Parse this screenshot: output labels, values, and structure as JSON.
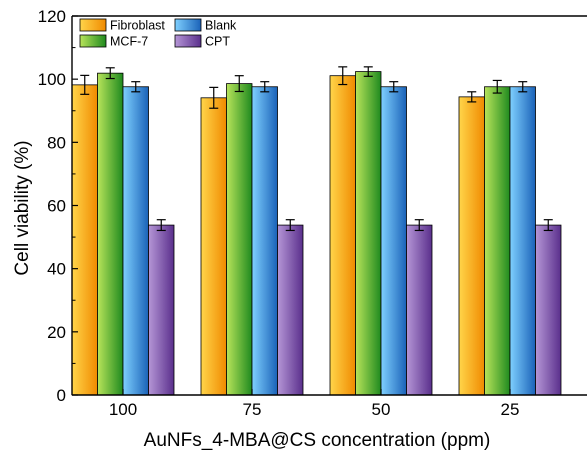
{
  "chart_data": {
    "type": "bar",
    "xlabel": "AuNFs_4-MBA@CS concentration (ppm)",
    "ylabel": "Cell viability (%)",
    "ylim": [
      0,
      120
    ],
    "yticks": [
      0,
      20,
      40,
      60,
      80,
      100,
      120
    ],
    "categories": [
      "100",
      "75",
      "50",
      "25"
    ],
    "series": [
      {
        "name": "Fibroblast",
        "values": [
          98.2,
          94.1,
          101.1,
          94.4
        ],
        "errors": [
          3.0,
          3.3,
          2.8,
          1.6
        ]
      },
      {
        "name": "MCF-7",
        "values": [
          101.9,
          98.6,
          102.4,
          97.6
        ],
        "errors": [
          1.7,
          2.5,
          1.5,
          2.0
        ]
      },
      {
        "name": "Blank",
        "values": [
          97.6,
          97.6,
          97.6,
          97.6
        ],
        "errors": [
          1.6,
          1.6,
          1.6,
          1.6
        ]
      },
      {
        "name": "CPT",
        "values": [
          53.8,
          53.8,
          53.8,
          53.8
        ],
        "errors": [
          1.7,
          1.7,
          1.7,
          1.7
        ]
      }
    ],
    "legend": {
      "position": "top-left",
      "columns": 2
    },
    "grid": false
  },
  "colors": {
    "Fibroblast": {
      "light": "#ffd54a",
      "dark": "#f08a00"
    },
    "MCF-7": {
      "light": "#b8e45a",
      "dark": "#1f8a1f"
    },
    "Blank": {
      "light": "#7fd0ff",
      "dark": "#1a62b8"
    },
    "CPT": {
      "light": "#b596d6",
      "dark": "#5a2f8c"
    }
  }
}
